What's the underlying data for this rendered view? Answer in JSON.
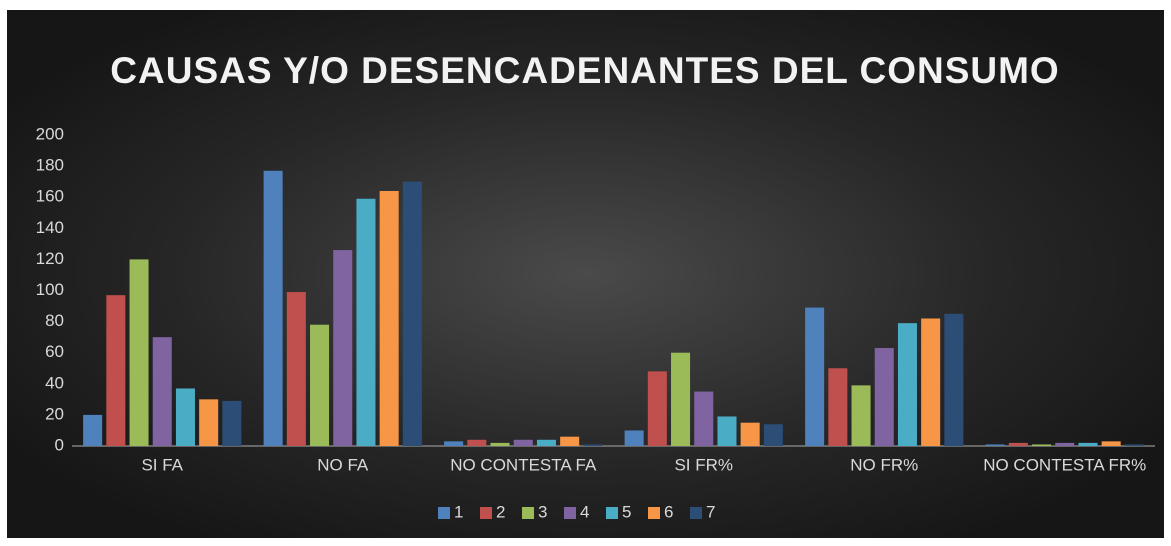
{
  "chart_data": {
    "type": "bar",
    "title": "CAUSAS Y/O DESENCADENANTES DEL CONSUMO",
    "categories": [
      "SI FA",
      "NO FA",
      "NO CONTESTA FA",
      "SI FR%",
      "NO FR%",
      "NO CONTESTA FR%"
    ],
    "series": [
      {
        "name": "1",
        "color": "#4f81bd",
        "values": [
          20,
          177,
          3,
          10,
          89,
          1
        ]
      },
      {
        "name": "2",
        "color": "#c0504d",
        "values": [
          97,
          99,
          4,
          48,
          50,
          2
        ]
      },
      {
        "name": "3",
        "color": "#9bbb59",
        "values": [
          120,
          78,
          2,
          60,
          39,
          1
        ]
      },
      {
        "name": "4",
        "color": "#8064a2",
        "values": [
          70,
          126,
          4,
          35,
          63,
          2
        ]
      },
      {
        "name": "5",
        "color": "#4bacc6",
        "values": [
          37,
          159,
          4,
          19,
          79,
          2
        ]
      },
      {
        "name": "6",
        "color": "#f79646",
        "values": [
          30,
          164,
          6,
          15,
          82,
          3
        ]
      },
      {
        "name": "7",
        "color": "#2c4d75",
        "values": [
          29,
          170,
          1,
          14,
          85,
          1
        ]
      }
    ],
    "ylim": [
      0,
      200
    ],
    "yticks": [
      0,
      20,
      40,
      60,
      80,
      100,
      120,
      140,
      160,
      180,
      200
    ],
    "grid": false,
    "legend": "bottom"
  }
}
